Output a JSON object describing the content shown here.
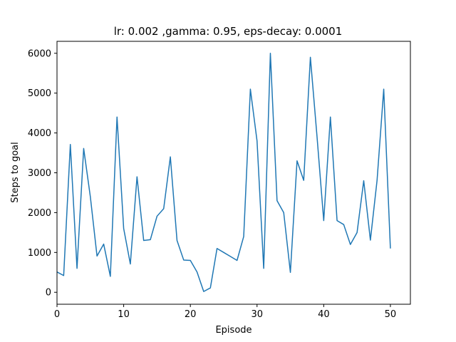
{
  "chart_data": {
    "type": "line",
    "title": "lr: 0.002 ,gamma: 0.95, eps-decay: 0.0001",
    "xlabel": "Episode",
    "ylabel": "Steps to goal",
    "xlim": [
      0,
      53
    ],
    "ylim": [
      -300,
      6300
    ],
    "xticks": [
      0,
      10,
      20,
      30,
      40,
      50
    ],
    "yticks": [
      0,
      1000,
      2000,
      3000,
      4000,
      5000,
      6000
    ],
    "grid": false,
    "line_color": "#1f77b4",
    "series": [
      {
        "x": [
          0,
          1,
          2,
          3,
          4,
          5,
          6,
          7,
          8,
          9,
          10,
          11,
          12,
          13,
          14,
          15,
          16,
          17,
          18,
          19,
          20,
          21,
          22,
          23,
          24,
          25,
          26,
          27,
          28,
          29,
          30,
          31,
          32,
          33,
          34,
          35,
          36,
          37,
          38,
          39,
          40,
          41,
          42,
          43,
          44,
          45,
          46,
          47,
          48,
          49,
          50
        ],
        "y": [
          510,
          420,
          3710,
          600,
          3610,
          2400,
          910,
          1210,
          400,
          4400,
          1600,
          710,
          2900,
          1300,
          1320,
          1910,
          2100,
          3400,
          1300,
          810,
          800,
          510,
          20,
          110,
          1100,
          1000,
          900,
          800,
          1400,
          5100,
          3800,
          600,
          6000,
          2300,
          2000,
          500,
          3300,
          2810,
          5900,
          3900,
          1800,
          4400,
          1800,
          1700,
          1200,
          1500,
          2800,
          1310,
          2810,
          5100,
          1100
        ]
      }
    ]
  }
}
